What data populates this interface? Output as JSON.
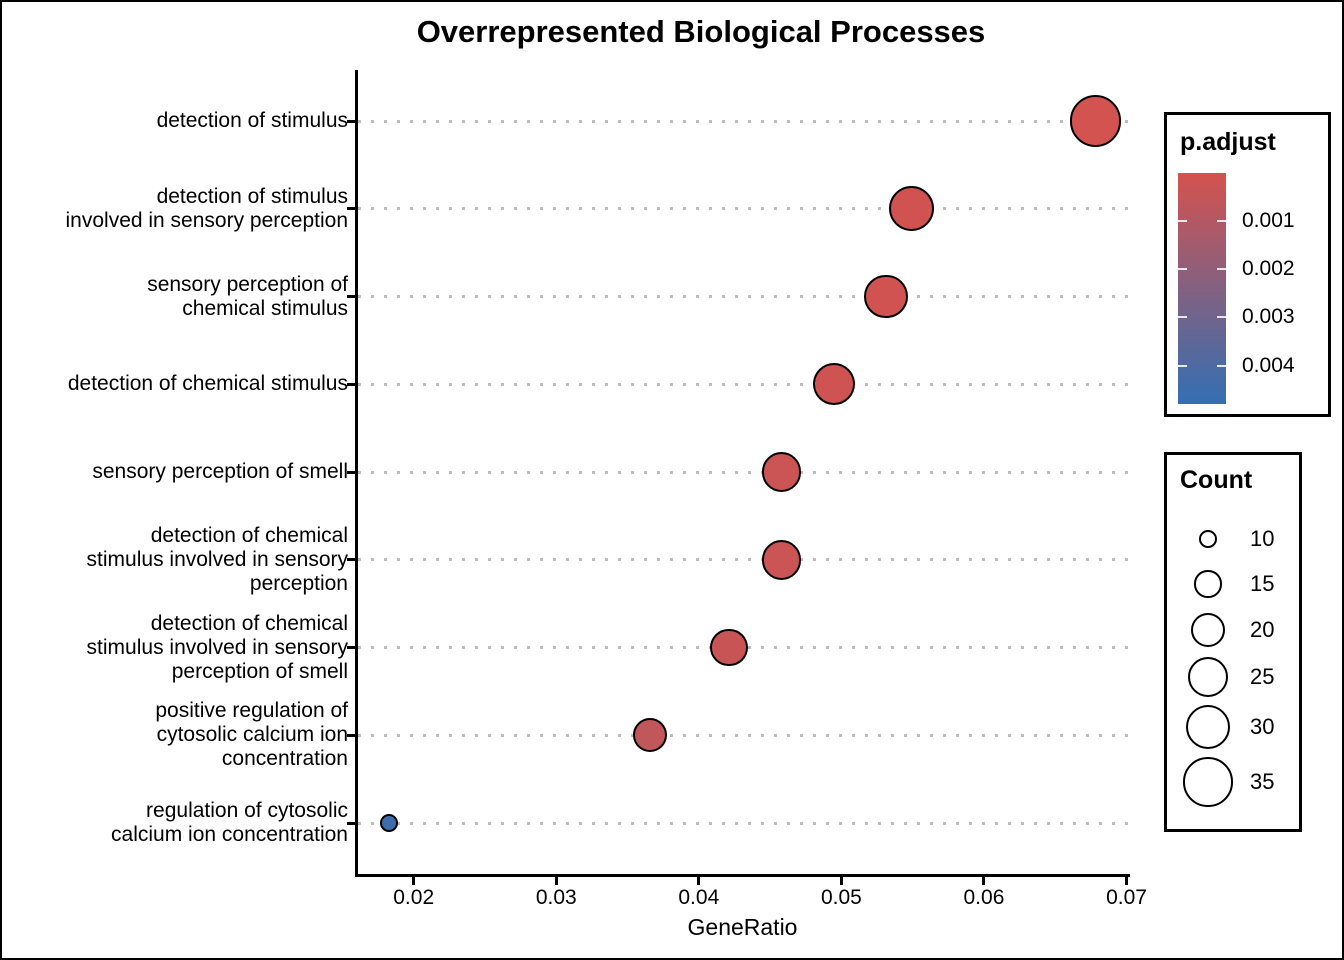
{
  "figure_title": "Overrepresented Biological Processes",
  "chart_data": {
    "type": "scatter",
    "subtype": "enrichment-dotplot",
    "title": "Overrepresented Biological Processes",
    "xlabel": "GeneRatio",
    "ylabel": "",
    "xlim": [
      0.0159,
      0.0702
    ],
    "x_tick_labels": [
      "0.02",
      "0.03",
      "0.04",
      "0.05",
      "0.06",
      "0.07"
    ],
    "grid": "horizontal dotted",
    "legend_position": "right",
    "points": [
      {
        "label": "detection of stimulus",
        "gene_ratio": 0.0678,
        "count": 37,
        "p_adjust": 0.0001
      },
      {
        "label": "detection of stimulus\ninvolved in sensory perception",
        "gene_ratio": 0.0549,
        "count": 30,
        "p_adjust": 0.00015
      },
      {
        "label": "sensory perception of\nchemical stimulus",
        "gene_ratio": 0.0531,
        "count": 29,
        "p_adjust": 0.00015
      },
      {
        "label": "detection of chemical stimulus",
        "gene_ratio": 0.0495,
        "count": 27,
        "p_adjust": 0.0002
      },
      {
        "label": "sensory perception of smell",
        "gene_ratio": 0.0458,
        "count": 25,
        "p_adjust": 0.0003
      },
      {
        "label": "detection of chemical\nstimulus involved in sensory\nperception",
        "gene_ratio": 0.0458,
        "count": 25,
        "p_adjust": 0.0003
      },
      {
        "label": "detection of chemical\nstimulus involved in sensory\nperception of smell",
        "gene_ratio": 0.0421,
        "count": 23,
        "p_adjust": 0.0004
      },
      {
        "label": "positive regulation of\ncytosolic calcium ion\nconcentration",
        "gene_ratio": 0.0366,
        "count": 20,
        "p_adjust": 0.0006
      },
      {
        "label": "regulation of cytosolic\ncalcium ion concentration",
        "gene_ratio": 0.0183,
        "count": 10,
        "p_adjust": 0.0045
      }
    ],
    "color_scale": {
      "title": "p.adjust",
      "low_color": "#D5524E",
      "high_color": "#336FB3",
      "domain": [
        0.0,
        0.0048
      ],
      "ticks": [
        0.001,
        0.002,
        0.003,
        0.004
      ],
      "tick_labels": [
        "0.001",
        "0.002",
        "0.003",
        "0.004"
      ]
    },
    "size_scale": {
      "title": "Count",
      "ticks": [
        10,
        15,
        20,
        25,
        30,
        35
      ],
      "tick_labels": [
        "10",
        "15",
        "20",
        "25",
        "30",
        "35"
      ]
    },
    "style": {
      "point_outline": "#000000",
      "grid_color": "#bcbcbc",
      "axis_color": "#000000"
    }
  }
}
